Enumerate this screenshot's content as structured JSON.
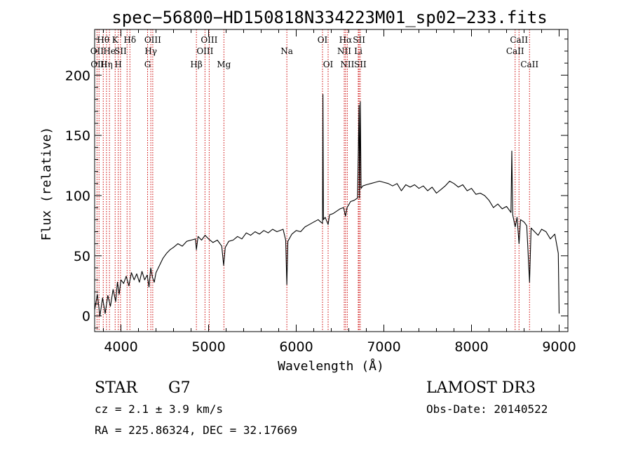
{
  "chart_data": {
    "type": "line",
    "title": "spec−56800−HD150818N334223M01_sp02−233.fits",
    "xlabel": "Wavelength (Å)",
    "ylabel": "Flux (relative)",
    "xlim": [
      3700,
      9100
    ],
    "ylim": [
      -13,
      238
    ],
    "xticks": [
      4000,
      5000,
      6000,
      7000,
      8000,
      9000
    ],
    "yticks": [
      0,
      50,
      100,
      150,
      200
    ],
    "line_color": "#000000",
    "marker_color": "#cc0000",
    "series": [
      {
        "name": "flux",
        "points": [
          [
            3700,
            5
          ],
          [
            3730,
            18
          ],
          [
            3760,
            0
          ],
          [
            3790,
            15
          ],
          [
            3820,
            2
          ],
          [
            3850,
            17
          ],
          [
            3880,
            8
          ],
          [
            3910,
            22
          ],
          [
            3940,
            12
          ],
          [
            3960,
            28
          ],
          [
            3980,
            18
          ],
          [
            4000,
            30
          ],
          [
            4030,
            27
          ],
          [
            4060,
            33
          ],
          [
            4090,
            25
          ],
          [
            4120,
            36
          ],
          [
            4150,
            30
          ],
          [
            4180,
            35
          ],
          [
            4210,
            28
          ],
          [
            4240,
            37
          ],
          [
            4270,
            30
          ],
          [
            4300,
            34
          ],
          [
            4320,
            24
          ],
          [
            4340,
            40
          ],
          [
            4360,
            32
          ],
          [
            4380,
            28
          ],
          [
            4400,
            36
          ],
          [
            4440,
            42
          ],
          [
            4480,
            48
          ],
          [
            4520,
            52
          ],
          [
            4560,
            55
          ],
          [
            4600,
            57
          ],
          [
            4650,
            60
          ],
          [
            4700,
            58
          ],
          [
            4750,
            62
          ],
          [
            4800,
            63
          ],
          [
            4850,
            64
          ],
          [
            4861,
            55
          ],
          [
            4880,
            66
          ],
          [
            4920,
            63
          ],
          [
            4960,
            67
          ],
          [
            5000,
            64
          ],
          [
            5050,
            61
          ],
          [
            5100,
            63
          ],
          [
            5150,
            58
          ],
          [
            5172,
            42
          ],
          [
            5190,
            57
          ],
          [
            5230,
            62
          ],
          [
            5280,
            63
          ],
          [
            5330,
            66
          ],
          [
            5380,
            64
          ],
          [
            5430,
            69
          ],
          [
            5480,
            67
          ],
          [
            5530,
            70
          ],
          [
            5580,
            68
          ],
          [
            5630,
            71
          ],
          [
            5680,
            69
          ],
          [
            5730,
            72
          ],
          [
            5780,
            70
          ],
          [
            5850,
            72
          ],
          [
            5880,
            63
          ],
          [
            5893,
            26
          ],
          [
            5905,
            62
          ],
          [
            5950,
            68
          ],
          [
            6000,
            71
          ],
          [
            6050,
            70
          ],
          [
            6100,
            74
          ],
          [
            6150,
            76
          ],
          [
            6200,
            78
          ],
          [
            6250,
            80
          ],
          [
            6280,
            78
          ],
          [
            6300,
            77
          ],
          [
            6305,
            184
          ],
          [
            6310,
            80
          ],
          [
            6330,
            82
          ],
          [
            6364,
            76
          ],
          [
            6380,
            84
          ],
          [
            6420,
            85
          ],
          [
            6460,
            87
          ],
          [
            6500,
            89
          ],
          [
            6540,
            90
          ],
          [
            6562,
            83
          ],
          [
            6580,
            90
          ],
          [
            6620,
            95
          ],
          [
            6660,
            96
          ],
          [
            6700,
            98
          ],
          [
            6717,
            175
          ],
          [
            6722,
            98
          ],
          [
            6731,
            178
          ],
          [
            6740,
            106
          ],
          [
            6760,
            108
          ],
          [
            6800,
            109
          ],
          [
            6850,
            110
          ],
          [
            6900,
            111
          ],
          [
            6950,
            112
          ],
          [
            7000,
            111
          ],
          [
            7050,
            110
          ],
          [
            7100,
            108
          ],
          [
            7150,
            110
          ],
          [
            7200,
            104
          ],
          [
            7250,
            109
          ],
          [
            7300,
            107
          ],
          [
            7350,
            109
          ],
          [
            7400,
            106
          ],
          [
            7450,
            108
          ],
          [
            7500,
            104
          ],
          [
            7550,
            107
          ],
          [
            7600,
            102
          ],
          [
            7650,
            105
          ],
          [
            7700,
            108
          ],
          [
            7750,
            112
          ],
          [
            7800,
            110
          ],
          [
            7850,
            107
          ],
          [
            7900,
            109
          ],
          [
            7950,
            104
          ],
          [
            8000,
            106
          ],
          [
            8050,
            101
          ],
          [
            8100,
            102
          ],
          [
            8150,
            100
          ],
          [
            8200,
            96
          ],
          [
            8250,
            90
          ],
          [
            8300,
            93
          ],
          [
            8350,
            89
          ],
          [
            8400,
            91
          ],
          [
            8450,
            86
          ],
          [
            8460,
            137
          ],
          [
            8470,
            84
          ],
          [
            8498,
            74
          ],
          [
            8520,
            82
          ],
          [
            8542,
            60
          ],
          [
            8560,
            80
          ],
          [
            8600,
            78
          ],
          [
            8630,
            75
          ],
          [
            8662,
            28
          ],
          [
            8680,
            73
          ],
          [
            8720,
            70
          ],
          [
            8760,
            67
          ],
          [
            8800,
            72
          ],
          [
            8850,
            70
          ],
          [
            8900,
            64
          ],
          [
            8950,
            68
          ],
          [
            8990,
            52
          ],
          [
            9000,
            2
          ]
        ]
      }
    ],
    "line_markers": [
      {
        "wl": 3727,
        "label": "OII",
        "row": 2
      },
      {
        "wl": 3750,
        "label": "OIII",
        "row": 3
      },
      {
        "wl": 3798,
        "label": "Hθ",
        "row": 1
      },
      {
        "wl": 3835,
        "label": "Hη",
        "row": 3
      },
      {
        "wl": 3869,
        "label": "He",
        "row": 2
      },
      {
        "wl": 3934,
        "label": "K",
        "row": 1
      },
      {
        "wl": 3969,
        "label": "H",
        "row": 3
      },
      {
        "wl": 3995,
        "label": "SII",
        "row": 2
      },
      {
        "wl": 4102,
        "label": "Hδ",
        "row": 1
      },
      {
        "wl": 4070,
        "label": "",
        "row": 0
      },
      {
        "wl": 4304,
        "label": "G",
        "row": 3
      },
      {
        "wl": 4341,
        "label": "Hγ",
        "row": 2
      },
      {
        "wl": 4363,
        "label": "OIII",
        "row": 1
      },
      {
        "wl": 4861,
        "label": "Hβ",
        "row": 3
      },
      {
        "wl": 4959,
        "label": "OIII",
        "row": 2
      },
      {
        "wl": 5007,
        "label": "OIII",
        "row": 1
      },
      {
        "wl": 5175,
        "label": "Mg",
        "row": 3
      },
      {
        "wl": 5893,
        "label": "Na",
        "row": 2
      },
      {
        "wl": 6300,
        "label": "OI",
        "row": 1
      },
      {
        "wl": 6364,
        "label": "OI",
        "row": 3
      },
      {
        "wl": 6548,
        "label": "NII",
        "row": 2
      },
      {
        "wl": 6563,
        "label": "Hα",
        "row": 1
      },
      {
        "wl": 6583,
        "label": "NII",
        "row": 3
      },
      {
        "wl": 6708,
        "label": "Li",
        "row": 2
      },
      {
        "wl": 6717,
        "label": "SII",
        "row": 1
      },
      {
        "wl": 6731,
        "label": "SII",
        "row": 3
      },
      {
        "wl": 8498,
        "label": "CaII",
        "row": 2
      },
      {
        "wl": 8542,
        "label": "CaII",
        "row": 1
      },
      {
        "wl": 8662,
        "label": "CaII",
        "row": 3
      }
    ]
  },
  "info": {
    "object_type": "STAR",
    "subclass": "G7",
    "cz": "cz = 2.1 ± 3.9 km/s",
    "coords": "RA = 225.86324, DEC =  32.17669",
    "survey": "LAMOST DR3",
    "obs_date": "Obs-Date: 20140522"
  }
}
